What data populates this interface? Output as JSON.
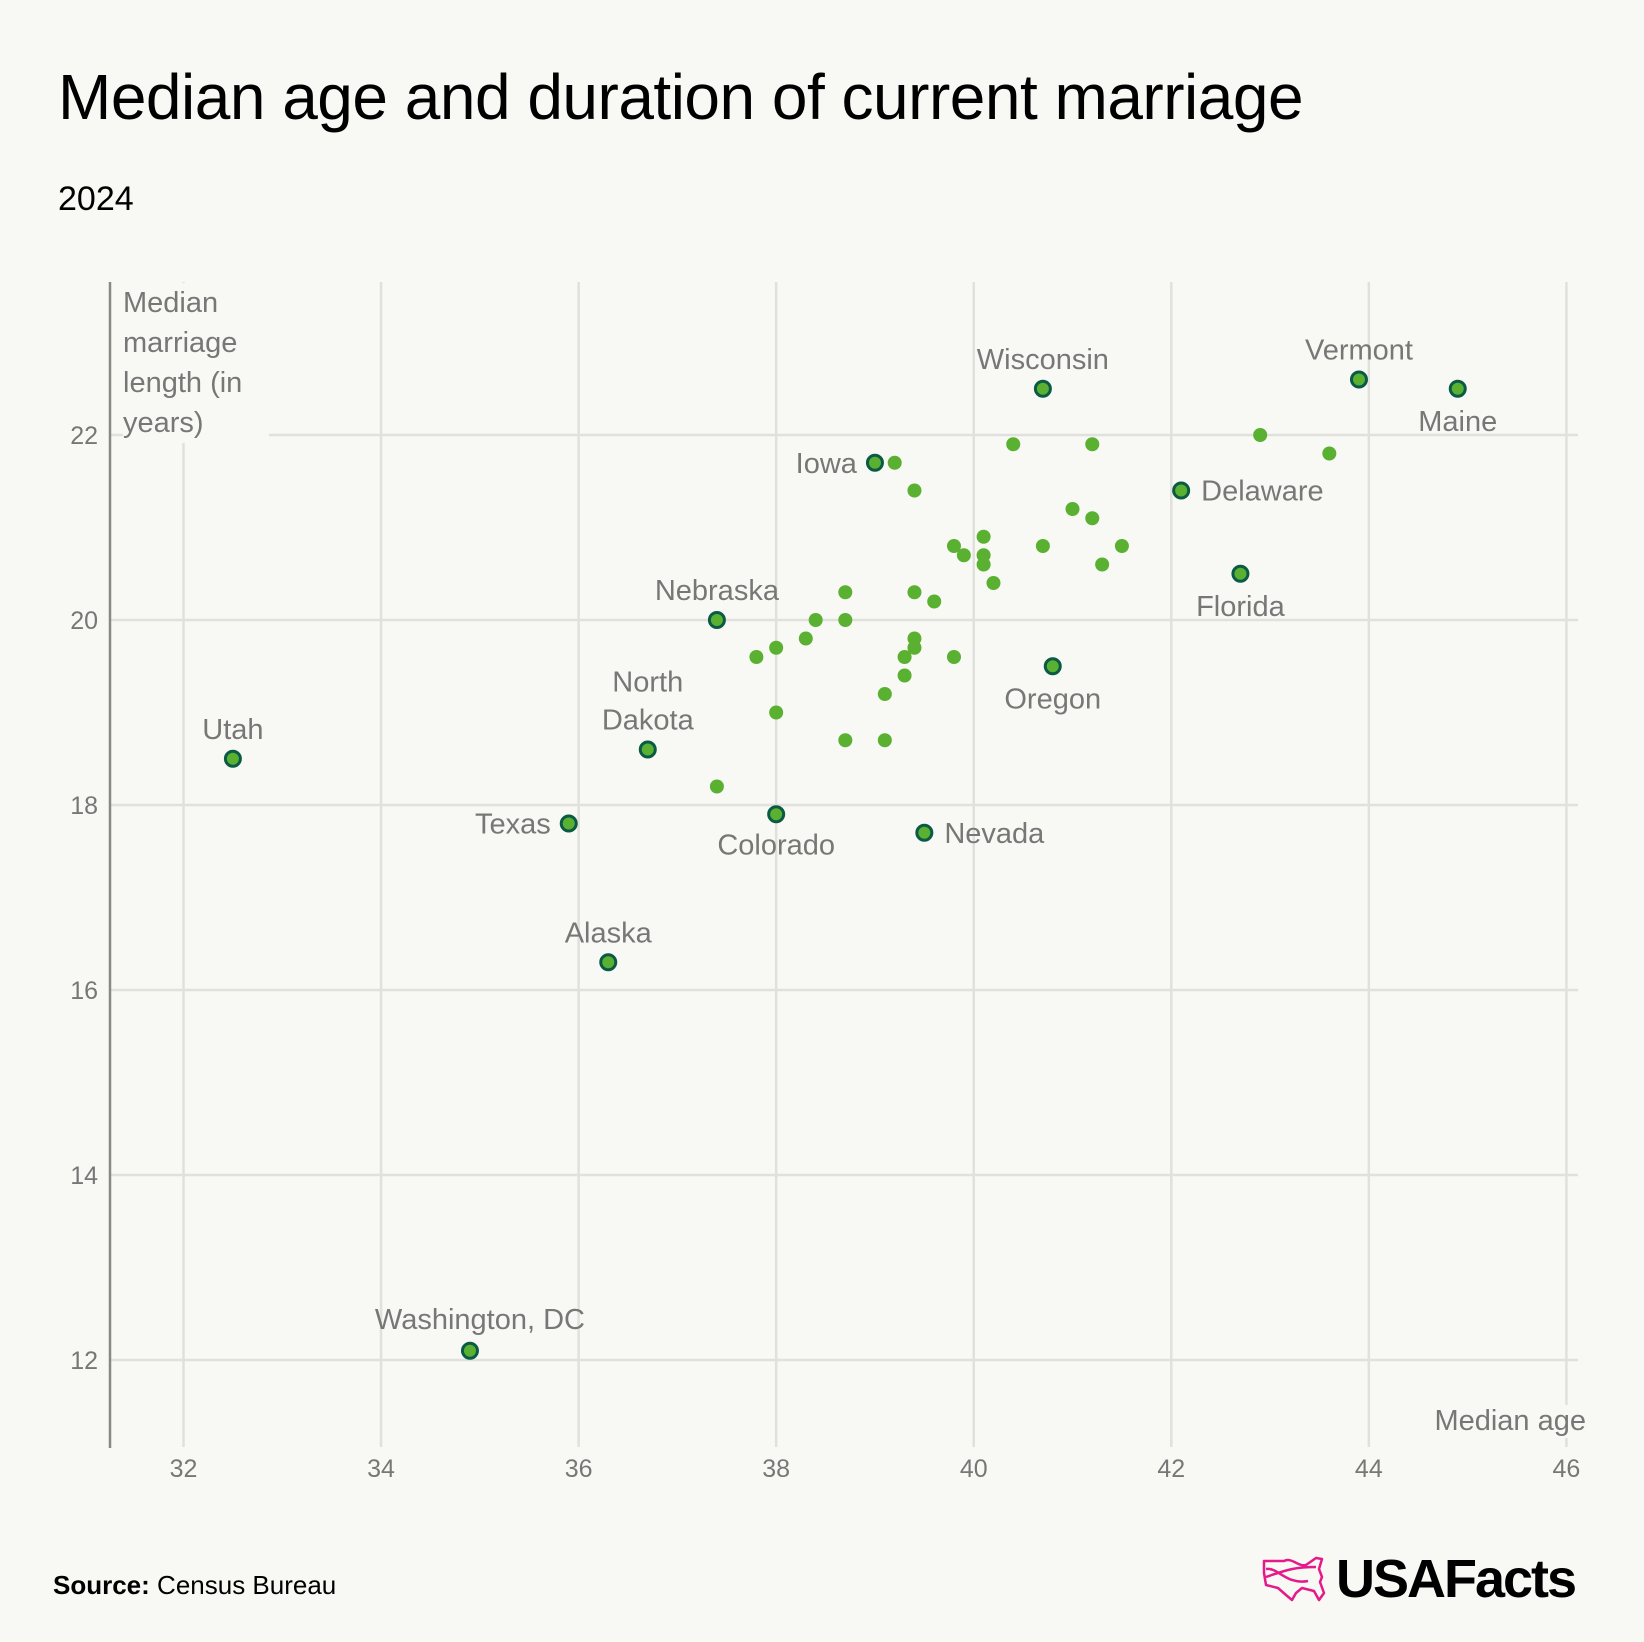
{
  "title": "Median age and duration of current marriage",
  "subtitle": "2024",
  "source_label": "Source:",
  "source_value": "Census Bureau",
  "logo_text": "USAFacts",
  "colors": {
    "background": "#f8f8f4",
    "point_fill": "#5ab031",
    "highlight_outline": "#0b5a45",
    "text_gray": "#777777",
    "grid": "#e0e0dc",
    "logo_pink": "#e6198a"
  },
  "chart_data": {
    "type": "scatter",
    "title": "Median age and duration of current marriage",
    "subtitle": "2024",
    "xlabel": "Median age",
    "ylabel": "Median marriage length (in years)",
    "xlim": [
      31.3,
      46.2
    ],
    "ylim": [
      11.1,
      23.8
    ],
    "xticks": [
      32,
      34,
      36,
      38,
      40,
      42,
      44,
      46
    ],
    "yticks": [
      12,
      14,
      16,
      18,
      20,
      22
    ],
    "grid": true,
    "labeled_points": [
      {
        "label": "Wisconsin",
        "x": 40.7,
        "y": 22.5
      },
      {
        "label": "Vermont",
        "x": 43.9,
        "y": 22.6
      },
      {
        "label": "Maine",
        "x": 44.9,
        "y": 22.5
      },
      {
        "label": "Iowa",
        "x": 39.0,
        "y": 21.7
      },
      {
        "label": "Delaware",
        "x": 42.1,
        "y": 21.4
      },
      {
        "label": "Florida",
        "x": 42.7,
        "y": 20.5
      },
      {
        "label": "Nebraska",
        "x": 37.4,
        "y": 20.0
      },
      {
        "label": "Oregon",
        "x": 40.8,
        "y": 19.5
      },
      {
        "label": "Utah",
        "x": 32.5,
        "y": 18.5
      },
      {
        "label": "North Dakota",
        "x": 36.7,
        "y": 18.6
      },
      {
        "label": "Texas",
        "x": 35.9,
        "y": 17.8
      },
      {
        "label": "Colorado",
        "x": 38.0,
        "y": 17.9
      },
      {
        "label": "Nevada",
        "x": 39.5,
        "y": 17.7
      },
      {
        "label": "Alaska",
        "x": 36.3,
        "y": 16.3
      },
      {
        "label": "Washington, DC",
        "x": 34.9,
        "y": 12.1
      }
    ],
    "other_points": [
      [
        39.2,
        21.7
      ],
      [
        42.9,
        22.0
      ],
      [
        40.4,
        21.9
      ],
      [
        41.2,
        21.9
      ],
      [
        43.6,
        21.8
      ],
      [
        39.4,
        21.4
      ],
      [
        41.0,
        21.2
      ],
      [
        41.2,
        21.1
      ],
      [
        40.1,
        20.9
      ],
      [
        39.8,
        20.8
      ],
      [
        40.7,
        20.8
      ],
      [
        41.5,
        20.8
      ],
      [
        39.9,
        20.7
      ],
      [
        40.1,
        20.7
      ],
      [
        40.1,
        20.6
      ],
      [
        41.3,
        20.6
      ],
      [
        40.2,
        20.4
      ],
      [
        38.7,
        20.3
      ],
      [
        39.4,
        20.3
      ],
      [
        39.6,
        20.2
      ],
      [
        38.4,
        20.0
      ],
      [
        38.7,
        20.0
      ],
      [
        38.3,
        19.8
      ],
      [
        39.4,
        19.8
      ],
      [
        38.0,
        19.7
      ],
      [
        39.4,
        19.7
      ],
      [
        37.8,
        19.6
      ],
      [
        39.3,
        19.6
      ],
      [
        39.8,
        19.6
      ],
      [
        39.3,
        19.4
      ],
      [
        39.1,
        19.2
      ],
      [
        38.0,
        19.0
      ],
      [
        38.7,
        18.7
      ],
      [
        39.1,
        18.7
      ],
      [
        37.4,
        18.2
      ]
    ]
  }
}
